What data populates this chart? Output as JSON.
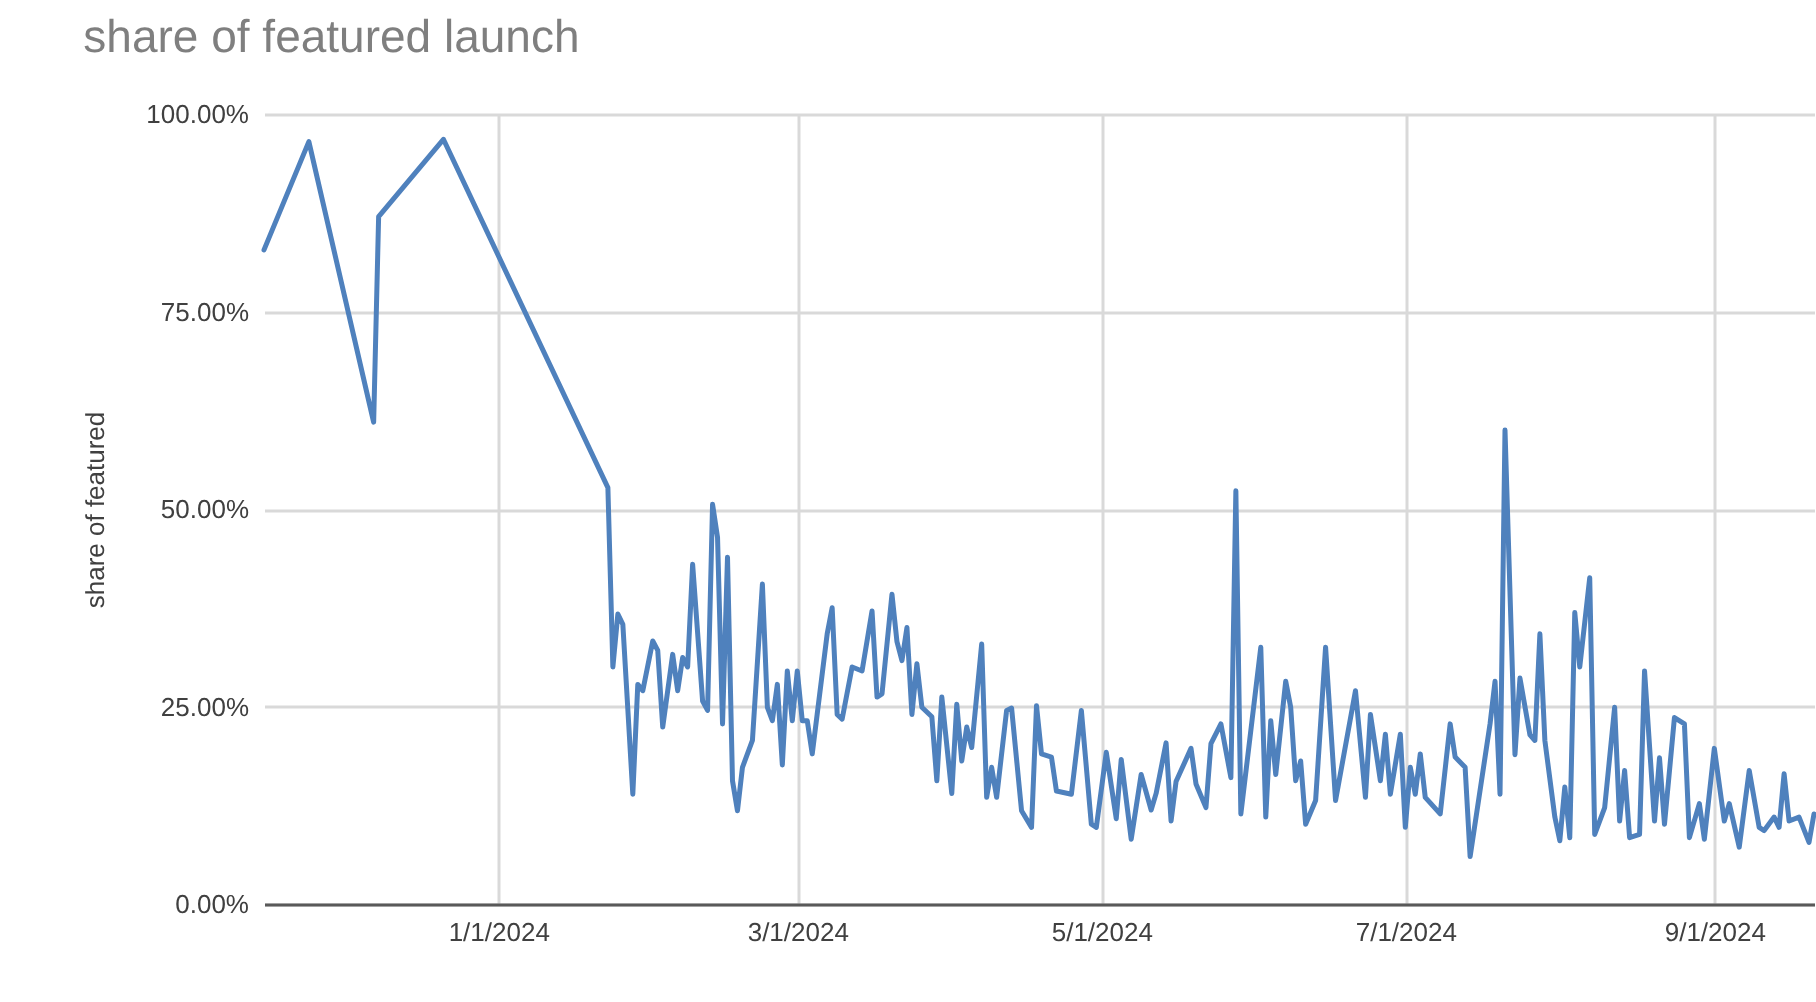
{
  "chart_data": {
    "type": "line",
    "title": "share of featured launch",
    "ylabel": "share of featured",
    "xlim": [
      "2023-11-15",
      "2024-09-21"
    ],
    "xticks": [
      {
        "value": "2024-01-01",
        "label": "1/1/2024"
      },
      {
        "value": "2024-03-01",
        "label": "3/1/2024"
      },
      {
        "value": "2024-05-01",
        "label": "5/1/2024"
      },
      {
        "value": "2024-07-01",
        "label": "7/1/2024"
      },
      {
        "value": "2024-09-01",
        "label": "9/1/2024"
      }
    ],
    "ylim": [
      0,
      100
    ],
    "yticks": [
      {
        "value": 0,
        "label": "0.00%"
      },
      {
        "value": 25,
        "label": "25.00%"
      },
      {
        "value": 50,
        "label": "50.00%"
      },
      {
        "value": 75,
        "label": "75.00%"
      },
      {
        "value": 100,
        "label": "100.00%"
      }
    ],
    "grid": true,
    "marker": "none",
    "line_style": "solid",
    "series": [
      {
        "color": "#4f81bd",
        "x": [
          "2023-11-15",
          "2023-11-24",
          "2023-12-07",
          "2023-12-08",
          "2023-12-21",
          "2024-01-23",
          "2024-01-24",
          "2024-01-25",
          "2024-01-26",
          "2024-01-28",
          "2024-01-29",
          "2024-01-30",
          "2024-02-01",
          "2024-02-02",
          "2024-02-03",
          "2024-02-05",
          "2024-02-06",
          "2024-02-07",
          "2024-02-08",
          "2024-02-09",
          "2024-02-11",
          "2024-02-12",
          "2024-02-13",
          "2024-02-14",
          "2024-02-15",
          "2024-02-16",
          "2024-02-17",
          "2024-02-18",
          "2024-02-19",
          "2024-02-21",
          "2024-02-23",
          "2024-02-24",
          "2024-02-25",
          "2024-02-26",
          "2024-02-27",
          "2024-02-28",
          "2024-02-29",
          "2024-03-01",
          "2024-03-02",
          "2024-03-03",
          "2024-03-04",
          "2024-03-07",
          "2024-03-08",
          "2024-03-09",
          "2024-03-10",
          "2024-03-12",
          "2024-03-14",
          "2024-03-16",
          "2024-03-17",
          "2024-03-18",
          "2024-03-20",
          "2024-03-21",
          "2024-03-22",
          "2024-03-23",
          "2024-03-24",
          "2024-03-25",
          "2024-03-26",
          "2024-03-28",
          "2024-03-29",
          "2024-03-30",
          "2024-04-01",
          "2024-04-02",
          "2024-04-03",
          "2024-04-04",
          "2024-04-05",
          "2024-04-07",
          "2024-04-08",
          "2024-04-09",
          "2024-04-10",
          "2024-04-12",
          "2024-04-13",
          "2024-04-15",
          "2024-04-17",
          "2024-04-18",
          "2024-04-19",
          "2024-04-21",
          "2024-04-22",
          "2024-04-25",
          "2024-04-27",
          "2024-04-29",
          "2024-04-30",
          "2024-05-02",
          "2024-05-04",
          "2024-05-05",
          "2024-05-07",
          "2024-05-09",
          "2024-05-11",
          "2024-05-12",
          "2024-05-14",
          "2024-05-15",
          "2024-05-16",
          "2024-05-19",
          "2024-05-20",
          "2024-05-22",
          "2024-05-23",
          "2024-05-25",
          "2024-05-27",
          "2024-05-28",
          "2024-05-29",
          "2024-06-02",
          "2024-06-03",
          "2024-06-04",
          "2024-06-05",
          "2024-06-07",
          "2024-06-08",
          "2024-06-09",
          "2024-06-10",
          "2024-06-11",
          "2024-06-13",
          "2024-06-15",
          "2024-06-17",
          "2024-06-21",
          "2024-06-23",
          "2024-06-24",
          "2024-06-26",
          "2024-06-27",
          "2024-06-28",
          "2024-06-30",
          "2024-07-01",
          "2024-07-02",
          "2024-07-03",
          "2024-07-04",
          "2024-07-05",
          "2024-07-08",
          "2024-07-10",
          "2024-07-11",
          "2024-07-13",
          "2024-07-14",
          "2024-07-18",
          "2024-07-19",
          "2024-07-20",
          "2024-07-21",
          "2024-07-23",
          "2024-07-24",
          "2024-07-26",
          "2024-07-27",
          "2024-07-28",
          "2024-07-29",
          "2024-07-31",
          "2024-08-01",
          "2024-08-02",
          "2024-08-03",
          "2024-08-04",
          "2024-08-05",
          "2024-08-07",
          "2024-08-08",
          "2024-08-10",
          "2024-08-12",
          "2024-08-13",
          "2024-08-14",
          "2024-08-15",
          "2024-08-17",
          "2024-08-18",
          "2024-08-20",
          "2024-08-21",
          "2024-08-22",
          "2024-08-24",
          "2024-08-26",
          "2024-08-27",
          "2024-08-29",
          "2024-08-30",
          "2024-09-01",
          "2024-09-03",
          "2024-09-04",
          "2024-09-06",
          "2024-09-08",
          "2024-09-10",
          "2024-09-11",
          "2024-09-13",
          "2024-09-14",
          "2024-09-15",
          "2024-09-16",
          "2024-09-18",
          "2024-09-20",
          "2024-09-21"
        ],
        "values": [
          82.8,
          96.5,
          61,
          87,
          96.8,
          52.7,
          30,
          36.7,
          35.4,
          13.9,
          27.8,
          27,
          33.3,
          32.1,
          22.4,
          31.6,
          27,
          31.2,
          30,
          43,
          25.7,
          24.5,
          50.6,
          46.4,
          22.8,
          43.9,
          15.6,
          11.8,
          17.3,
          20.7,
          40.5,
          24.9,
          23.2,
          27.8,
          17.6,
          29.5,
          23.2,
          29.5,
          23.2,
          23.2,
          19,
          34.2,
          37.5,
          24,
          23.4,
          30,
          29.5,
          37.1,
          26.2,
          26.6,
          39.2,
          33.2,
          30.8,
          35,
          24,
          30.4,
          24.9,
          23.7,
          15.6,
          26.2,
          14,
          25.3,
          18.1,
          22.4,
          19.8,
          32.9,
          13.5,
          17.3,
          13.5,
          24.5,
          24.8,
          11.8,
          9.7,
          25.1,
          19,
          18.6,
          14.3,
          13.9,
          24.5,
          10.1,
          9.7,
          19.2,
          10.8,
          18.3,
          8.2,
          16.4,
          11.9,
          14,
          20.4,
          10.5,
          15.5,
          19.7,
          15.2,
          12.2,
          20.3,
          22.8,
          16,
          52.3,
          11.4,
          32.5,
          11,
          23.2,
          16.4,
          28.2,
          24.9,
          15.6,
          18.1,
          10.1,
          13.1,
          32.5,
          13.1,
          27,
          13.5,
          24,
          15.6,
          21.5,
          13.9,
          21.5,
          9.7,
          17.3,
          13.9,
          19,
          13.5,
          11.4,
          22.8,
          18.6,
          17.3,
          6,
          22.8,
          28.2,
          13.9,
          60,
          18.9,
          28.6,
          21.4,
          20.7,
          34.2,
          20.7,
          11,
          8,
          14.8,
          8.4,
          36.9,
          30,
          41.3,
          8.8,
          12.2,
          24.9,
          10.5,
          16.9,
          8.4,
          8.8,
          29.5,
          10.5,
          18.5,
          10.1,
          23.6,
          22.8,
          8.4,
          12.7,
          8.2,
          19.7,
          10.5,
          12.7,
          7.2,
          16.9,
          9.7,
          9.3,
          11,
          9.7,
          16.5,
          10.5,
          11,
          7.8,
          11.4
        ]
      }
    ]
  }
}
